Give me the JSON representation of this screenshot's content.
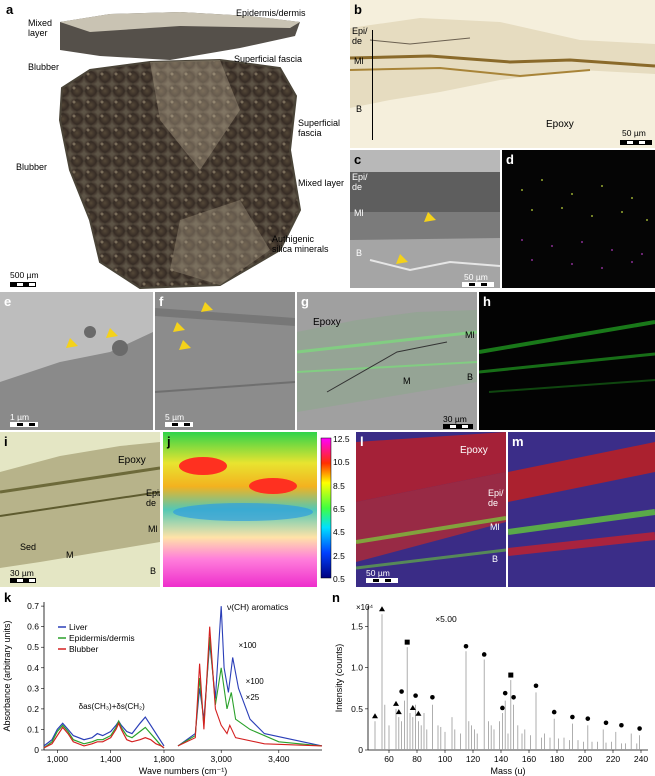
{
  "panels": {
    "a": {
      "label": "a",
      "mixed_layer": "Mixed\nlayer",
      "epidermis": "Epidermis/dermis",
      "blubber_top": "Blubber",
      "superficial_fascia_top": "Superficial fascia",
      "superficial_fascia": "Superficial\nfascia",
      "blubber": "Blubber",
      "mixed_layer2": "Mixed layer",
      "silica": "Authigenic\nsilica minerals",
      "scale": "500 µm"
    },
    "b": {
      "label": "b",
      "epi": "Epi/\nde",
      "ml": "Ml",
      "b": "B",
      "epoxy": "Epoxy",
      "scale": "50 µm"
    },
    "c": {
      "label": "c",
      "epi": "Epi/\nde",
      "ml": "Ml",
      "b": "B",
      "scale": "50 µm"
    },
    "d": {
      "label": "d"
    },
    "e": {
      "label": "e",
      "scale": "1 µm"
    },
    "f": {
      "label": "f",
      "scale": "5 µm"
    },
    "g": {
      "label": "g",
      "epoxy": "Epoxy",
      "ml": "Ml",
      "b": "B",
      "m": "M",
      "scale": "30 µm"
    },
    "h": {
      "label": "h"
    },
    "i": {
      "label": "i",
      "epoxy": "Epoxy",
      "epi": "Epi/\nde",
      "ml": "Ml",
      "b": "B",
      "sed": "Sed",
      "m": "M",
      "scale": "30 µm"
    },
    "j": {
      "label": "j",
      "colorbar_ticks": [
        "12.5",
        "10.5",
        "8.5",
        "6.5",
        "4.5",
        "2.5",
        "0.5"
      ]
    },
    "l": {
      "label": "l",
      "epoxy": "Epoxy",
      "epi": "Epi/\nde",
      "ml": "Ml",
      "b": "B",
      "scale": "50 µm"
    },
    "m": {
      "label": "m"
    },
    "k": {
      "label": "k"
    },
    "n": {
      "label": "n",
      "multiplier": "×10⁴",
      "zoom": "×5.00"
    }
  },
  "chart_data": [
    {
      "type": "line",
      "panel": "k",
      "xlabel": "Wave numbers (cm⁻¹)",
      "ylabel": "Absorbance (arbitrary units)",
      "xlim": [
        900,
        3700
      ],
      "ylim": [
        0,
        0.72
      ],
      "x_ticks": [
        "1,000",
        "1,400",
        "1,800",
        "3,000",
        "3,400"
      ],
      "y_ticks": [
        "0",
        "0.1",
        "0.2",
        "0.3",
        "0.4",
        "0.5",
        "0.6",
        "0.7"
      ],
      "legend": [
        "Liver",
        "Epidermis/dermis",
        "Blubber"
      ],
      "legend_position": "top-left",
      "annotations": [
        "ν(CH) aromatics",
        "×100",
        "×100",
        "×25",
        "δas(CH₃)+δs(CH₂)"
      ],
      "colors": {
        "Liver": "#2b3fb8",
        "Epidermis/dermis": "#2aa12a",
        "Blubber": "#d42020"
      },
      "series": [
        {
          "name": "Liver",
          "x": [
            900,
            960,
            1000,
            1040,
            1080,
            1120,
            1200,
            1260,
            1300,
            1340,
            1400,
            1440,
            1460,
            1480,
            1520,
            1560,
            1620,
            1660,
            1700,
            1740,
            1780,
            1800
          ],
          "y": [
            0.02,
            0.05,
            0.1,
            0.13,
            0.1,
            0.07,
            0.05,
            0.06,
            0.08,
            0.07,
            0.09,
            0.12,
            0.14,
            0.12,
            0.09,
            0.08,
            0.13,
            0.16,
            0.12,
            0.08,
            0.04,
            0.02
          ]
        },
        {
          "name": "Epidermis/dermis",
          "x": [
            900,
            960,
            1000,
            1040,
            1080,
            1120,
            1200,
            1260,
            1300,
            1340,
            1400,
            1440,
            1460,
            1480,
            1520,
            1560,
            1620,
            1660,
            1700,
            1740,
            1780,
            1800
          ],
          "y": [
            0.01,
            0.04,
            0.09,
            0.12,
            0.09,
            0.05,
            0.03,
            0.04,
            0.05,
            0.05,
            0.07,
            0.11,
            0.14,
            0.11,
            0.07,
            0.06,
            0.09,
            0.11,
            0.08,
            0.05,
            0.02,
            0.01
          ]
        },
        {
          "name": "Blubber",
          "x": [
            900,
            960,
            1000,
            1040,
            1080,
            1120,
            1200,
            1260,
            1300,
            1340,
            1400,
            1440,
            1460,
            1480,
            1520,
            1560,
            1620,
            1660,
            1700,
            1740,
            1780,
            1800
          ],
          "y": [
            0.01,
            0.03,
            0.07,
            0.11,
            0.08,
            0.04,
            0.02,
            0.03,
            0.04,
            0.04,
            0.06,
            0.1,
            0.13,
            0.1,
            0.05,
            0.04,
            0.05,
            0.06,
            0.05,
            0.03,
            0.02,
            0.01
          ]
        }
      ]
    },
    {
      "type": "bar",
      "panel": "n",
      "xlabel": "Mass (u)",
      "ylabel": "Intensity (counts)",
      "xlim": [
        45,
        245
      ],
      "ylim": [
        0,
        1.75
      ],
      "x_ticks": [
        "60",
        "80",
        "100",
        "120",
        "140",
        "160",
        "180",
        "200",
        "220",
        "240"
      ],
      "y_ticks": [
        "0",
        "0.5",
        "1.0",
        "1.5"
      ],
      "masses": [
        50,
        55,
        57,
        60,
        65,
        67,
        69,
        71,
        73,
        75,
        77,
        79,
        81,
        83,
        85,
        87,
        91,
        95,
        97,
        100,
        105,
        107,
        111,
        115,
        117,
        119,
        121,
        123,
        128,
        131,
        133,
        135,
        139,
        141,
        143,
        145,
        147,
        149,
        152,
        155,
        157,
        161,
        165,
        169,
        171,
        175,
        178,
        181,
        185,
        189,
        191,
        195,
        199,
        202,
        205,
        209,
        213,
        215,
        219,
        222,
        226,
        229,
        233,
        237,
        239
      ],
      "intensities": [
        0.35,
        1.65,
        0.55,
        0.3,
        0.5,
        0.4,
        0.35,
        0.6,
        1.25,
        0.45,
        0.4,
        0.55,
        0.35,
        0.3,
        0.45,
        0.25,
        0.55,
        0.3,
        0.28,
        0.22,
        0.4,
        0.25,
        0.2,
        1.2,
        0.35,
        0.3,
        0.25,
        0.2,
        1.1,
        0.35,
        0.3,
        0.25,
        0.35,
        0.45,
        0.6,
        0.2,
        0.85,
        0.55,
        0.3,
        0.2,
        0.25,
        0.18,
        0.7,
        0.15,
        0.2,
        0.15,
        0.38,
        0.14,
        0.15,
        0.12,
        0.32,
        0.12,
        0.1,
        0.3,
        0.1,
        0.1,
        0.25,
        0.09,
        0.1,
        0.22,
        0.08,
        0.08,
        0.2,
        0.08,
        0.18
      ],
      "markers": [
        {
          "x": 50,
          "y": 0.35,
          "shape": "triangle"
        },
        {
          "x": 55,
          "y": 1.65,
          "shape": "triangle"
        },
        {
          "x": 65,
          "y": 0.5,
          "shape": "triangle"
        },
        {
          "x": 67,
          "y": 0.4,
          "shape": "triangle"
        },
        {
          "x": 69,
          "y": 0.65,
          "shape": "dot"
        },
        {
          "x": 73,
          "y": 1.25,
          "shape": "square"
        },
        {
          "x": 77,
          "y": 0.45,
          "shape": "triangle"
        },
        {
          "x": 79,
          "y": 0.6,
          "shape": "dot"
        },
        {
          "x": 81,
          "y": 0.38,
          "shape": "triangle"
        },
        {
          "x": 91,
          "y": 0.58,
          "shape": "dot"
        },
        {
          "x": 115,
          "y": 1.2,
          "shape": "dot"
        },
        {
          "x": 128,
          "y": 1.1,
          "shape": "dot"
        },
        {
          "x": 141,
          "y": 0.45,
          "shape": "dot"
        },
        {
          "x": 143,
          "y": 0.63,
          "shape": "dot"
        },
        {
          "x": 147,
          "y": 0.85,
          "shape": "square"
        },
        {
          "x": 149,
          "y": 0.58,
          "shape": "dot"
        },
        {
          "x": 165,
          "y": 0.72,
          "shape": "dot"
        },
        {
          "x": 178,
          "y": 0.4,
          "shape": "dot"
        },
        {
          "x": 191,
          "y": 0.34,
          "shape": "dot"
        },
        {
          "x": 202,
          "y": 0.32,
          "shape": "dot"
        },
        {
          "x": 215,
          "y": 0.27,
          "shape": "dot"
        },
        {
          "x": 226,
          "y": 0.24,
          "shape": "dot"
        },
        {
          "x": 239,
          "y": 0.2,
          "shape": "dot"
        }
      ]
    }
  ]
}
